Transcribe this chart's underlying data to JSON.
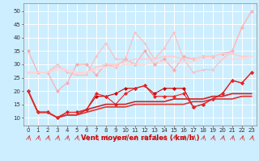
{
  "x": [
    0,
    1,
    2,
    3,
    4,
    5,
    6,
    7,
    8,
    9,
    10,
    11,
    12,
    13,
    14,
    15,
    16,
    17,
    18,
    19,
    20,
    21,
    22,
    23
  ],
  "series": [
    {
      "y": [
        35,
        27,
        27,
        20,
        23,
        30,
        30,
        26,
        30,
        29,
        32,
        30,
        35,
        30,
        32,
        28,
        33,
        32,
        33,
        33,
        34,
        35,
        44,
        50
      ],
      "color": "#ffaaaa",
      "lw": 0.8,
      "marker": "D",
      "ms": 2.0
    },
    {
      "y": [
        27,
        27,
        27,
        30,
        27,
        26,
        26,
        33,
        38,
        32,
        32,
        42,
        38,
        32,
        36,
        42,
        32,
        27,
        28,
        28,
        32,
        35,
        44,
        50
      ],
      "color": "#ffbbbb",
      "lw": 0.8,
      "marker": "+",
      "ms": 3.5
    },
    {
      "y": [
        27,
        27,
        27,
        29,
        28,
        27,
        27,
        29,
        30,
        30,
        31,
        32,
        32,
        32,
        33,
        33,
        32,
        32,
        33,
        33,
        34,
        34,
        33,
        33
      ],
      "color": "#ffcccc",
      "lw": 1.2,
      "marker": null,
      "ms": 0
    },
    {
      "y": [
        27,
        27,
        27,
        28,
        28,
        27,
        27,
        28,
        29,
        29,
        30,
        30,
        30,
        31,
        31,
        31,
        31,
        31,
        32,
        32,
        32,
        32,
        32,
        33
      ],
      "color": "#ffd8d8",
      "lw": 1.2,
      "marker": null,
      "ms": 0
    },
    {
      "y": [
        20,
        12,
        12,
        10,
        12,
        12,
        13,
        18,
        18,
        19,
        21,
        21,
        22,
        19,
        21,
        21,
        21,
        14,
        15,
        17,
        19,
        24,
        23,
        27
      ],
      "color": "#cc0000",
      "lw": 0.8,
      "marker": "D",
      "ms": 2.0
    },
    {
      "y": [
        20,
        12,
        12,
        10,
        12,
        12,
        13,
        19,
        18,
        15,
        19,
        21,
        22,
        18,
        18,
        18,
        19,
        14,
        15,
        17,
        19,
        24,
        23,
        27
      ],
      "color": "#ee2222",
      "lw": 0.8,
      "marker": "D",
      "ms": 2.0
    },
    {
      "y": [
        20,
        12,
        12,
        10,
        11,
        11,
        13,
        14,
        15,
        15,
        15,
        16,
        16,
        16,
        16,
        17,
        17,
        17,
        17,
        18,
        18,
        19,
        19,
        19
      ],
      "color": "#cc2222",
      "lw": 1.2,
      "marker": null,
      "ms": 0
    },
    {
      "y": [
        20,
        12,
        12,
        10,
        11,
        11,
        12,
        13,
        14,
        14,
        14,
        15,
        15,
        15,
        15,
        15,
        15,
        16,
        16,
        17,
        17,
        17,
        18,
        18
      ],
      "color": "#dd3333",
      "lw": 1.2,
      "marker": null,
      "ms": 0
    }
  ],
  "xlabel": "Vent moyen/en rafales ( km/h )",
  "ylim": [
    7,
    53
  ],
  "yticks": [
    10,
    15,
    20,
    25,
    30,
    35,
    40,
    45,
    50
  ],
  "xticks": [
    0,
    1,
    2,
    3,
    4,
    5,
    6,
    7,
    8,
    9,
    10,
    11,
    12,
    13,
    14,
    15,
    16,
    17,
    18,
    19,
    20,
    21,
    22,
    23
  ],
  "bg_color": "#cceeff",
  "grid_color": "#ffffff",
  "xlabel_color": "#cc0000",
  "xlabel_fontsize": 6,
  "tick_fontsize": 5,
  "arrow_color": "#cc3333"
}
